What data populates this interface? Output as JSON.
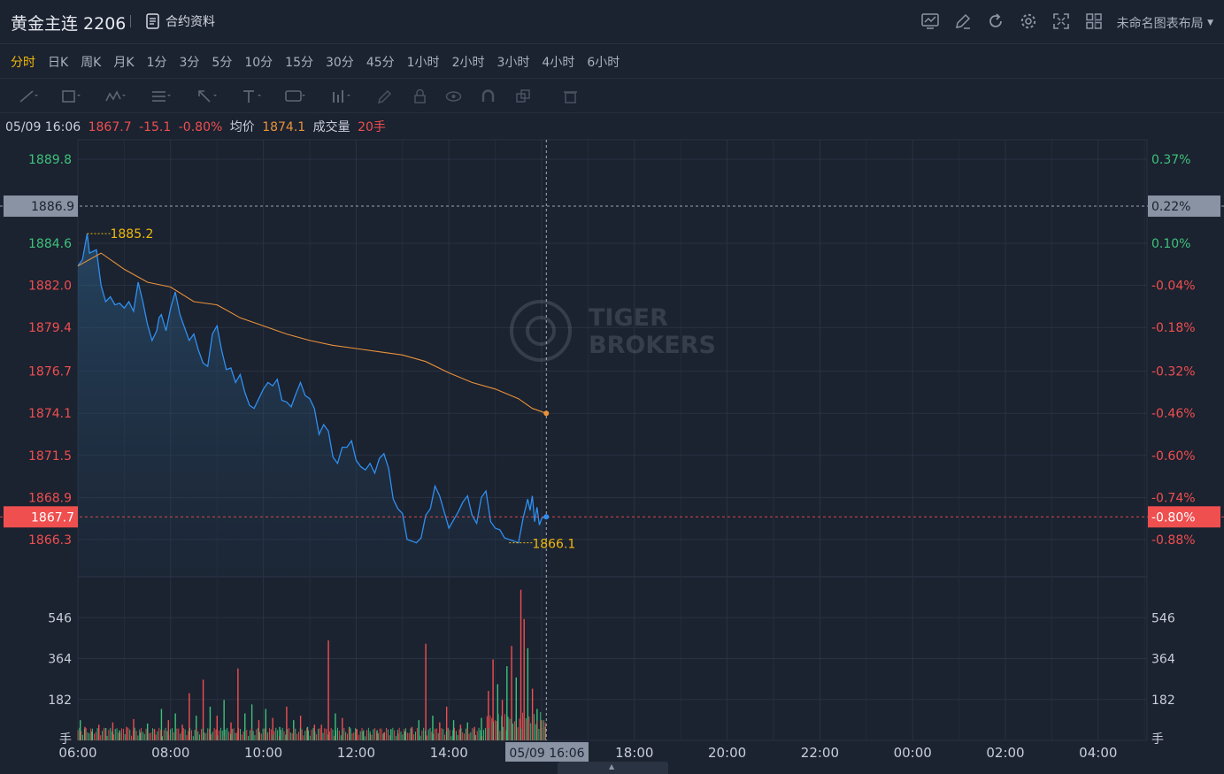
{
  "header": {
    "symbol": "黄金主连 2206",
    "contract_info_label": "合约资料",
    "layout_label": "未命名图表布局",
    "icons": [
      "chart-icon",
      "edit-icon",
      "refresh-icon",
      "settings-icon",
      "fullscreen-icon",
      "grid-icon"
    ]
  },
  "tabs": [
    {
      "label": "分时",
      "active": true
    },
    {
      "label": "日K"
    },
    {
      "label": "周K"
    },
    {
      "label": "月K"
    },
    {
      "label": "1分"
    },
    {
      "label": "3分"
    },
    {
      "label": "5分"
    },
    {
      "label": "10分"
    },
    {
      "label": "15分"
    },
    {
      "label": "30分"
    },
    {
      "label": "45分"
    },
    {
      "label": "1小时"
    },
    {
      "label": "2小时"
    },
    {
      "label": "3小时"
    },
    {
      "label": "4小时"
    },
    {
      "label": "6小时"
    }
  ],
  "drawing_tools": [
    "line-tool-icon",
    "rect-tool-icon",
    "pattern-tool-icon",
    "fib-tool-icon",
    "arrow-tool-icon",
    "text-tool-icon",
    "annotation-tool-icon",
    "measure-tool-icon",
    "pen-icon",
    "lock-icon",
    "eye-icon",
    "magnet-icon",
    "clone-icon",
    "trash-icon"
  ],
  "info": {
    "datetime": "05/09 16:06",
    "price": "1867.7",
    "change": "-15.1",
    "change_pct": "-0.80%",
    "avg_label": "均价",
    "avg_value": "1874.1",
    "volume_label": "成交量",
    "volume_value": "20手"
  },
  "watermark": "TIGER BROKERS",
  "colors": {
    "background": "#1b2230",
    "grid": "#2a3342",
    "price_line": "#2f8ff0",
    "avg_line": "#e8923a",
    "up": "#3ec27a",
    "down": "#ef4f4f",
    "highlight": "#f0b90b"
  },
  "chart_data": {
    "type": "line",
    "x_ticks": [
      "06:00",
      "08:00",
      "10:00",
      "12:00",
      "14:00",
      "16:00",
      "18:00",
      "20:00",
      "22:00",
      "00:00",
      "02:00",
      "04:00"
    ],
    "price_ticks": [
      "1889.8",
      "1884.6",
      "1882.0",
      "1879.4",
      "1876.7",
      "1874.1",
      "1871.5",
      "1868.9",
      "1866.3"
    ],
    "pct_ticks": [
      "0.37%",
      "0.10%",
      "-0.04%",
      "-0.18%",
      "-0.32%",
      "-0.46%",
      "-0.60%",
      "-0.74%",
      "-0.88%"
    ],
    "ylim": [
      1864.0,
      1891.0
    ],
    "crosshair": {
      "time": "05/09 16:06",
      "price": "1867.7",
      "pct": "-0.80%"
    },
    "ref_line": {
      "price": "1886.9",
      "pct": "0.22%"
    },
    "high_label": "1885.2",
    "low_label": "1866.1",
    "price_series": {
      "name": "price",
      "x_hours": [
        6.0,
        6.1,
        6.2,
        6.25,
        6.4,
        6.5,
        6.6,
        6.7,
        6.8,
        6.9,
        7.0,
        7.1,
        7.2,
        7.3,
        7.4,
        7.5,
        7.6,
        7.7,
        7.75,
        7.8,
        7.9,
        8.0,
        8.1,
        8.2,
        8.3,
        8.4,
        8.5,
        8.6,
        8.7,
        8.8,
        8.9,
        9.0,
        9.1,
        9.2,
        9.3,
        9.4,
        9.5,
        9.6,
        9.7,
        9.8,
        9.9,
        10.0,
        10.1,
        10.2,
        10.3,
        10.4,
        10.5,
        10.6,
        10.7,
        10.8,
        10.9,
        11.0,
        11.1,
        11.2,
        11.3,
        11.4,
        11.5,
        11.6,
        11.7,
        11.8,
        11.9,
        12.0,
        12.1,
        12.2,
        12.3,
        12.4,
        12.5,
        12.6,
        12.7,
        12.8,
        12.9,
        13.0,
        13.1,
        13.2,
        13.3,
        13.4,
        13.5,
        13.6,
        13.7,
        13.8,
        13.9,
        14.0,
        14.1,
        14.2,
        14.3,
        14.4,
        14.5,
        14.6,
        14.7,
        14.8,
        14.9,
        15.0,
        15.1,
        15.2,
        15.3,
        15.4,
        15.5,
        15.6,
        15.7,
        15.75,
        15.8,
        15.85,
        15.9,
        15.95,
        16.0,
        16.05,
        16.1
      ],
      "values": [
        1883.2,
        1883.6,
        1885.2,
        1884.0,
        1884.2,
        1882.0,
        1881.0,
        1881.3,
        1880.8,
        1880.9,
        1880.6,
        1881.0,
        1880.4,
        1882.2,
        1881.0,
        1879.6,
        1878.6,
        1879.2,
        1880.0,
        1880.2,
        1879.2,
        1880.6,
        1881.6,
        1880.2,
        1879.4,
        1878.6,
        1879.0,
        1878.0,
        1877.2,
        1877.0,
        1879.0,
        1879.5,
        1878.0,
        1876.8,
        1876.9,
        1876.0,
        1876.5,
        1875.4,
        1874.6,
        1874.4,
        1875.0,
        1875.6,
        1876.0,
        1875.8,
        1876.2,
        1874.9,
        1874.8,
        1874.5,
        1875.3,
        1876.0,
        1875.2,
        1875.0,
        1874.4,
        1872.8,
        1873.4,
        1873.0,
        1871.4,
        1871.0,
        1872.0,
        1872.0,
        1872.4,
        1871.2,
        1870.8,
        1870.6,
        1871.0,
        1870.4,
        1871.3,
        1871.6,
        1870.7,
        1868.8,
        1868.2,
        1867.9,
        1866.3,
        1866.2,
        1866.1,
        1866.4,
        1867.8,
        1868.2,
        1869.6,
        1869.0,
        1868.0,
        1867.0,
        1867.5,
        1868.0,
        1868.6,
        1869.0,
        1867.8,
        1867.3,
        1868.9,
        1869.3,
        1867.4,
        1867.0,
        1866.9,
        1866.4,
        1866.3,
        1866.2,
        1866.1,
        1867.6,
        1868.8,
        1868.1,
        1869.0,
        1867.4,
        1868.3,
        1867.2,
        1867.6,
        1867.7,
        1867.7
      ]
    },
    "avg_series": {
      "name": "avg",
      "x_hours": [
        6.0,
        6.5,
        7.0,
        7.5,
        8.0,
        8.5,
        9.0,
        9.5,
        10.0,
        10.5,
        11.0,
        11.5,
        12.0,
        12.5,
        13.0,
        13.5,
        14.0,
        14.5,
        15.0,
        15.5,
        15.8,
        16.1
      ],
      "values": [
        1883.2,
        1884.0,
        1883.0,
        1882.2,
        1881.9,
        1881.0,
        1880.8,
        1880.0,
        1879.5,
        1879.0,
        1878.6,
        1878.3,
        1878.1,
        1877.9,
        1877.7,
        1877.3,
        1876.6,
        1876.0,
        1875.6,
        1875.0,
        1874.4,
        1874.1
      ]
    },
    "volume": {
      "y_ticks": [
        "546",
        "364",
        "182"
      ],
      "unit": "手",
      "ylim": [
        0,
        728
      ],
      "bars": [
        [
          6.05,
          90,
          "up"
        ],
        [
          6.15,
          60,
          "down"
        ],
        [
          6.3,
          40,
          "up"
        ],
        [
          6.45,
          70,
          "down"
        ],
        [
          6.6,
          55,
          "up"
        ],
        [
          6.75,
          80,
          "down"
        ],
        [
          6.9,
          45,
          "up"
        ],
        [
          7.05,
          60,
          "down"
        ],
        [
          7.2,
          95,
          "down"
        ],
        [
          7.35,
          35,
          "up"
        ],
        [
          7.5,
          75,
          "up"
        ],
        [
          7.65,
          50,
          "down"
        ],
        [
          7.8,
          140,
          "up"
        ],
        [
          7.95,
          90,
          "down"
        ],
        [
          8.1,
          120,
          "up"
        ],
        [
          8.25,
          70,
          "down"
        ],
        [
          8.4,
          210,
          "down"
        ],
        [
          8.55,
          110,
          "up"
        ],
        [
          8.7,
          270,
          "down"
        ],
        [
          8.85,
          150,
          "up"
        ],
        [
          9.0,
          110,
          "down"
        ],
        [
          9.15,
          180,
          "up"
        ],
        [
          9.3,
          80,
          "down"
        ],
        [
          9.45,
          320,
          "down"
        ],
        [
          9.6,
          120,
          "up"
        ],
        [
          9.75,
          160,
          "up"
        ],
        [
          9.9,
          90,
          "down"
        ],
        [
          10.05,
          140,
          "up"
        ],
        [
          10.2,
          100,
          "down"
        ],
        [
          10.35,
          60,
          "up"
        ],
        [
          10.5,
          150,
          "down"
        ],
        [
          10.65,
          90,
          "up"
        ],
        [
          10.8,
          110,
          "down"
        ],
        [
          10.95,
          60,
          "up"
        ],
        [
          11.1,
          70,
          "down"
        ],
        [
          11.25,
          70,
          "down"
        ],
        [
          11.4,
          445,
          "down"
        ],
        [
          11.55,
          120,
          "up"
        ],
        [
          11.7,
          100,
          "down"
        ],
        [
          11.85,
          60,
          "up"
        ],
        [
          12.0,
          50,
          "down"
        ],
        [
          12.15,
          40,
          "up"
        ],
        [
          12.3,
          30,
          "down"
        ],
        [
          12.45,
          45,
          "up"
        ],
        [
          12.6,
          35,
          "down"
        ],
        [
          12.75,
          50,
          "up"
        ],
        [
          12.9,
          30,
          "down"
        ],
        [
          13.05,
          40,
          "up"
        ],
        [
          13.2,
          60,
          "down"
        ],
        [
          13.35,
          90,
          "up"
        ],
        [
          13.5,
          430,
          "down"
        ],
        [
          13.65,
          110,
          "up"
        ],
        [
          13.8,
          80,
          "down"
        ],
        [
          13.95,
          150,
          "down"
        ],
        [
          14.1,
          90,
          "up"
        ],
        [
          14.25,
          70,
          "down"
        ],
        [
          14.4,
          80,
          "up"
        ],
        [
          14.55,
          60,
          "down"
        ],
        [
          14.7,
          100,
          "up"
        ],
        [
          14.85,
          220,
          "down"
        ],
        [
          14.95,
          360,
          "down"
        ],
        [
          15.05,
          250,
          "up"
        ],
        [
          15.15,
          180,
          "down"
        ],
        [
          15.25,
          330,
          "up"
        ],
        [
          15.35,
          420,
          "down"
        ],
        [
          15.45,
          280,
          "up"
        ],
        [
          15.55,
          670,
          "down"
        ],
        [
          15.62,
          540,
          "down"
        ],
        [
          15.7,
          410,
          "up"
        ],
        [
          15.8,
          230,
          "down"
        ],
        [
          15.9,
          140,
          "up"
        ],
        [
          16.0,
          90,
          "down"
        ],
        [
          16.08,
          60,
          "up"
        ]
      ]
    }
  }
}
